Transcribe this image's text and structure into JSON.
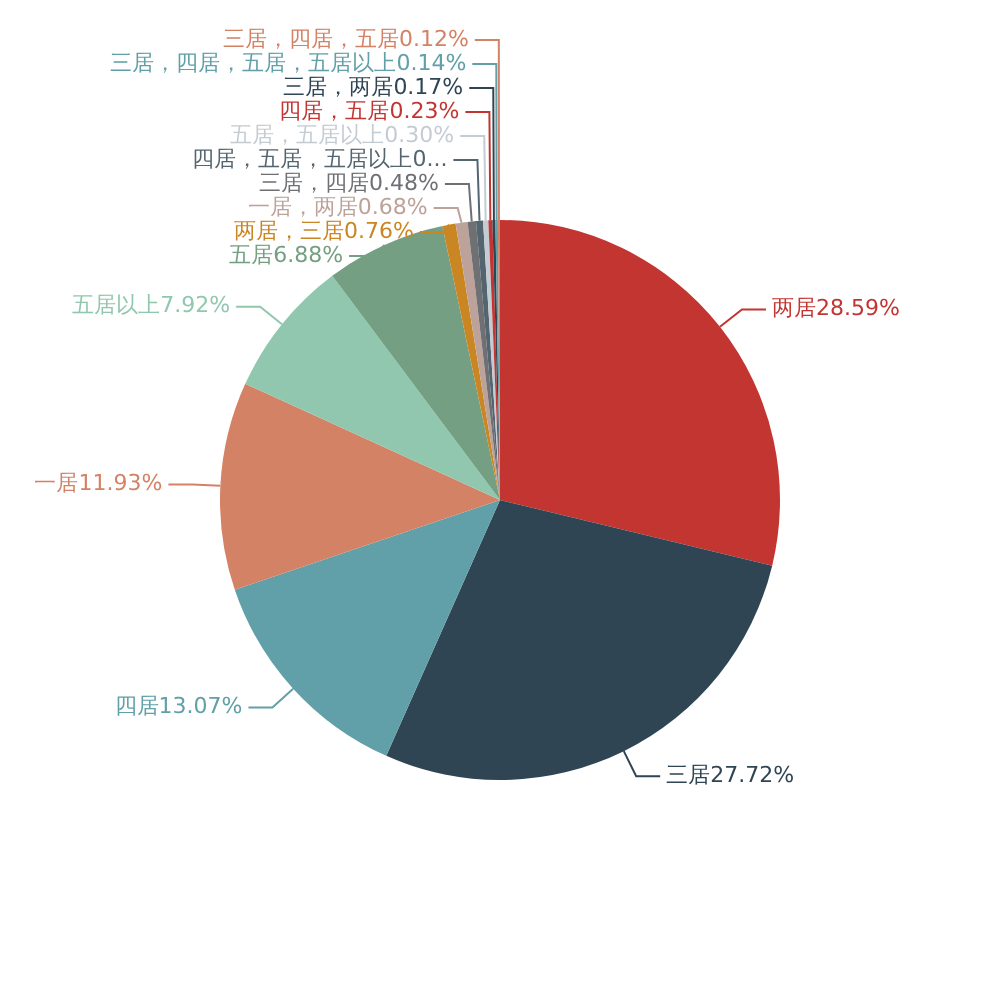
{
  "chart_data": {
    "type": "pie",
    "categories": [
      "两居",
      "三居",
      "四居",
      "一居",
      "五居以上",
      "五居",
      "两居，三居",
      "一居，两居",
      "三居，四居",
      "四居，五居，五居以上",
      "五居，五居以上",
      "四居，五居",
      "三居，两居",
      "三居，四居，五居，五居以上",
      "三居，四居，五居"
    ],
    "values": [
      28.59,
      27.72,
      13.07,
      11.93,
      7.92,
      6.88,
      0.76,
      0.68,
      0.48,
      0.4,
      0.3,
      0.23,
      0.17,
      0.14,
      0.12
    ],
    "colors": [
      "#c23531",
      "#2f4554",
      "#61a0a8",
      "#d48265",
      "#91c7ae",
      "#749f83",
      "#ca8622",
      "#bda29a",
      "#6e7074",
      "#546570",
      "#c4ccd3",
      "#c23531",
      "#2f4554",
      "#61a0a8",
      "#d48265"
    ],
    "value_labels": [
      "28.59%",
      "27.72%",
      "13.07%",
      "11.93%",
      "7.92%",
      "6.88%",
      "0.76%",
      "0.68%",
      "0.48%",
      "0...",
      "0.30%",
      "0.23%",
      "0.17%",
      "0.14%",
      "0.12%"
    ]
  }
}
